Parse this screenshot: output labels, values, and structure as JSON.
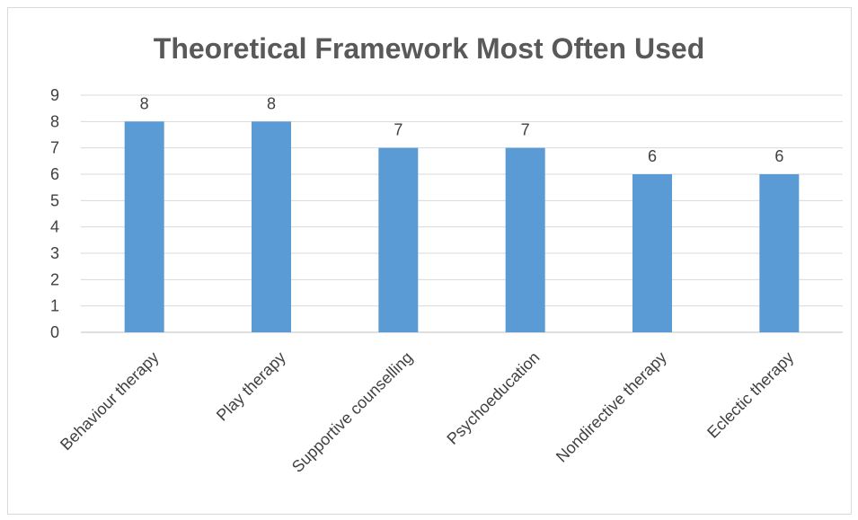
{
  "chart_data": {
    "type": "bar",
    "title": "Theoretical Framework Most Often Used",
    "xlabel": "",
    "ylabel": "",
    "categories": [
      "Behaviour therapy",
      "Play therapy",
      "Supportive counselling",
      "Psychoeducation",
      "Nondirective therapy",
      "Eclectic therapy"
    ],
    "values": [
      8,
      8,
      7,
      7,
      6,
      6
    ],
    "ylim": [
      0,
      9
    ],
    "yticks": [
      0,
      1,
      2,
      3,
      4,
      5,
      6,
      7,
      8,
      9
    ],
    "grid": true,
    "legend": "none",
    "bar_color": "#5b9bd5",
    "data_labels": true
  }
}
